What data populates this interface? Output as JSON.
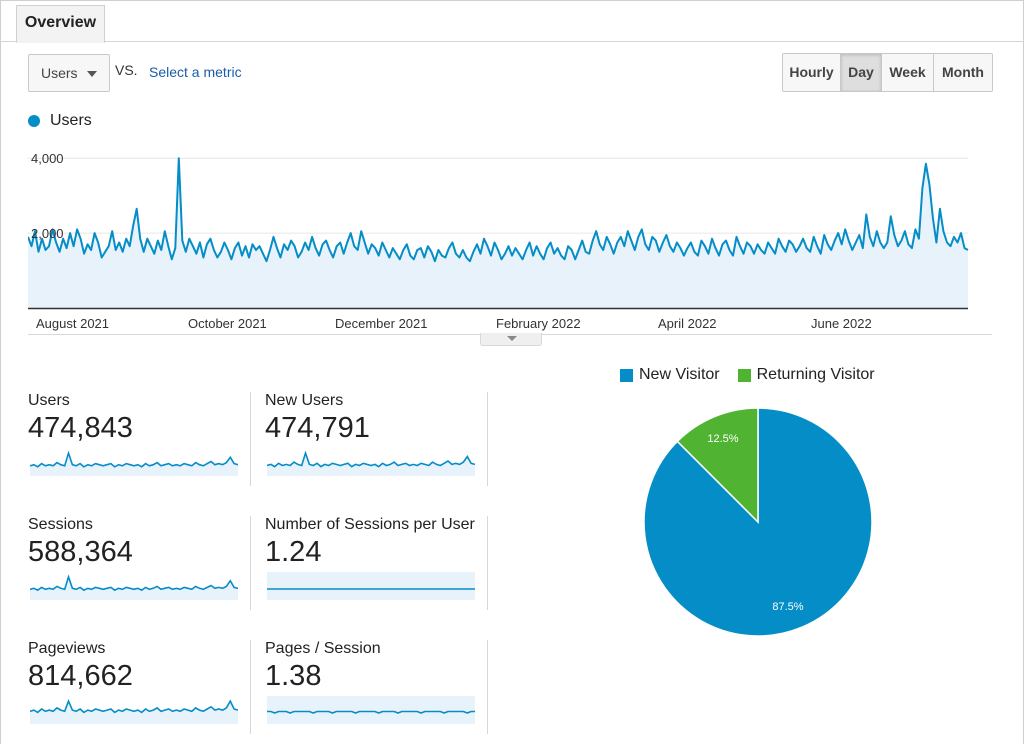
{
  "tabs": {
    "overview": "Overview"
  },
  "controls": {
    "metric_selected": "Users",
    "vs_label": "VS.",
    "select_metric": "Select a metric",
    "time_buttons": [
      "Hourly",
      "Day",
      "Week",
      "Month"
    ],
    "active_time_button": "Day"
  },
  "colors": {
    "primary": "#058dc7",
    "fill": "#e8f2fb",
    "returning": "#50b432"
  },
  "chart_data": [
    {
      "type": "area",
      "legend": "top-left",
      "series": [
        {
          "name": "Users",
          "values": [
            1900,
            1650,
            2050,
            1500,
            1850,
            1550,
            1650,
            2100,
            1750,
            1500,
            1850,
            1600,
            2000,
            1650,
            2100,
            1850,
            1450,
            1700,
            1550,
            2000,
            1750,
            1350,
            1500,
            1650,
            2050,
            1550,
            1750,
            1500,
            1850,
            1650,
            2200,
            2650,
            1850,
            1500,
            1850,
            1650,
            1450,
            1800,
            1550,
            2050,
            1650,
            1300,
            1600,
            4000,
            1800,
            1500,
            1850,
            1650,
            1450,
            1750,
            1350,
            1700,
            1850,
            1550,
            1350,
            1500,
            1750,
            1550,
            1300,
            1600,
            1750,
            1400,
            1650,
            1350,
            1700,
            1550,
            1650,
            1450,
            1250,
            1550,
            1900,
            1600,
            1350,
            1700,
            1550,
            1800,
            1650,
            1350,
            1500,
            1750,
            1550,
            1900,
            1600,
            1400,
            1700,
            1800,
            1550,
            1350,
            1650,
            1750,
            1450,
            1750,
            2000,
            1650,
            1550,
            2050,
            1750,
            1450,
            1700,
            1600,
            1400,
            1750,
            1550,
            1350,
            1600,
            1450,
            1300,
            1550,
            1700,
            1400,
            1300,
            1550,
            1600,
            1350,
            1650,
            1500,
            1250,
            1550,
            1400,
            1350,
            1600,
            1750,
            1450,
            1350,
            1550,
            1350,
            1250,
            1500,
            1700,
            1450,
            1850,
            1650,
            1400,
            1750,
            1550,
            1300,
            1450,
            1650,
            1400,
            1600,
            1450,
            1300,
            1550,
            1750,
            1400,
            1650,
            1450,
            1300,
            1600,
            1750,
            1450,
            1600,
            1400,
            1300,
            1650,
            1550,
            1300,
            1550,
            1800,
            1500,
            1450,
            1800,
            2050,
            1700,
            1550,
            1900,
            1700,
            1450,
            1750,
            1900,
            1650,
            2050,
            1800,
            1550,
            1900,
            2100,
            1700,
            1550,
            1900,
            1800,
            1500,
            1750,
            1950,
            1650,
            1500,
            1750,
            1600,
            1400,
            1600,
            1750,
            1500,
            1400,
            1800,
            1650,
            1450,
            1850,
            1600,
            1400,
            1700,
            1800,
            1550,
            1400,
            1900,
            1650,
            1450,
            1750,
            1650,
            1450,
            1700,
            1550,
            1450,
            1750,
            1600,
            1450,
            1850,
            1650,
            1500,
            1800,
            1700,
            1500,
            1650,
            1850,
            1600,
            1500,
            1900,
            1650,
            1450,
            1950,
            1700,
            1550,
            1800,
            2000,
            1700,
            2100,
            1800,
            1550,
            1750,
            1950,
            1600,
            2500,
            1900,
            1650,
            2050,
            1750,
            1600,
            1750,
            2450,
            1950,
            1650,
            1800,
            2050,
            1700,
            1600,
            2100,
            1850,
            3200,
            3850,
            3300,
            2400,
            1750,
            2650,
            2050,
            1750,
            1650,
            1900,
            1750,
            2000,
            1600,
            1550
          ]
        }
      ],
      "x_tick_labels": [
        "August 2021",
        "October 2021",
        "December 2021",
        "February 2022",
        "April 2022",
        "June 2022"
      ],
      "y_tick_labels": [
        "4,000",
        "2,000"
      ],
      "ylim": [
        0,
        4300
      ],
      "grid": true
    },
    {
      "type": "pie",
      "legend": "top",
      "labels": [
        "New Visitor",
        "Returning Visitor"
      ],
      "values": [
        87.5,
        12.5
      ],
      "value_labels": [
        "87.5%",
        "12.5%"
      ],
      "colors": [
        "#058dc7",
        "#50b432"
      ]
    }
  ],
  "metrics": [
    {
      "label": "Users",
      "value": "474,843",
      "spark": [
        4,
        5,
        3,
        6,
        4,
        5,
        4,
        7,
        5,
        4,
        16,
        5,
        4,
        6,
        3,
        5,
        4,
        6,
        5,
        4,
        5,
        6,
        3,
        5,
        4,
        6,
        5,
        4,
        5,
        3,
        6,
        4,
        5,
        7,
        4,
        5,
        6,
        4,
        5,
        4,
        6,
        5,
        4,
        7,
        5,
        4,
        6,
        8,
        5,
        6,
        5,
        7,
        12,
        6,
        5
      ]
    },
    {
      "label": "New Users",
      "value": "474,791",
      "spark": [
        4,
        5,
        3,
        6,
        4,
        5,
        4,
        7,
        5,
        4,
        15,
        5,
        4,
        6,
        3,
        5,
        4,
        6,
        5,
        4,
        5,
        6,
        3,
        5,
        4,
        6,
        5,
        4,
        5,
        3,
        6,
        4,
        5,
        7,
        4,
        5,
        6,
        4,
        5,
        4,
        6,
        5,
        4,
        7,
        5,
        4,
        6,
        8,
        5,
        6,
        5,
        7,
        12,
        6,
        5
      ]
    },
    {
      "label": "Sessions",
      "value": "588,364",
      "spark": [
        5,
        6,
        4,
        7,
        5,
        6,
        5,
        8,
        6,
        5,
        18,
        6,
        5,
        7,
        4,
        6,
        5,
        7,
        6,
        5,
        6,
        7,
        4,
        6,
        5,
        7,
        6,
        5,
        6,
        4,
        7,
        5,
        6,
        8,
        5,
        6,
        7,
        5,
        6,
        5,
        7,
        6,
        5,
        8,
        6,
        5,
        7,
        9,
        6,
        7,
        6,
        8,
        14,
        7,
        6
      ]
    },
    {
      "label": "Number of Sessions per User",
      "value": "1.24",
      "spark": [
        2,
        2,
        2,
        2,
        2,
        2,
        2,
        2,
        2,
        2,
        2,
        2,
        2,
        2,
        2,
        2,
        2,
        2,
        2,
        2,
        2,
        2,
        2,
        2,
        2,
        2,
        2,
        2,
        2,
        2,
        2,
        2,
        2,
        2,
        2,
        2,
        2,
        2,
        2,
        2,
        2,
        2,
        2,
        2,
        2,
        2,
        2,
        2,
        2,
        2,
        2,
        2,
        2,
        2,
        2
      ],
      "filled": true
    },
    {
      "label": "Pageviews",
      "value": "814,662",
      "spark": [
        6,
        7,
        5,
        8,
        6,
        7,
        6,
        9,
        7,
        6,
        15,
        7,
        6,
        8,
        5,
        7,
        6,
        8,
        7,
        6,
        7,
        8,
        5,
        7,
        6,
        8,
        7,
        6,
        7,
        5,
        8,
        6,
        7,
        9,
        6,
        7,
        8,
        6,
        7,
        6,
        8,
        7,
        6,
        9,
        7,
        6,
        8,
        10,
        7,
        8,
        7,
        9,
        15,
        8,
        7
      ]
    },
    {
      "label": "Pages / Session",
      "value": "1.38",
      "spark": [
        3,
        3,
        2,
        3,
        3,
        3,
        2,
        3,
        3,
        3,
        3,
        3,
        2,
        3,
        3,
        3,
        3,
        2,
        3,
        3,
        3,
        3,
        3,
        2,
        3,
        3,
        3,
        3,
        3,
        2,
        3,
        3,
        3,
        3,
        2,
        3,
        3,
        3,
        3,
        3,
        2,
        3,
        3,
        3,
        3,
        3,
        2,
        3,
        3,
        3,
        3,
        3,
        2,
        3,
        3
      ],
      "filled": true
    }
  ]
}
